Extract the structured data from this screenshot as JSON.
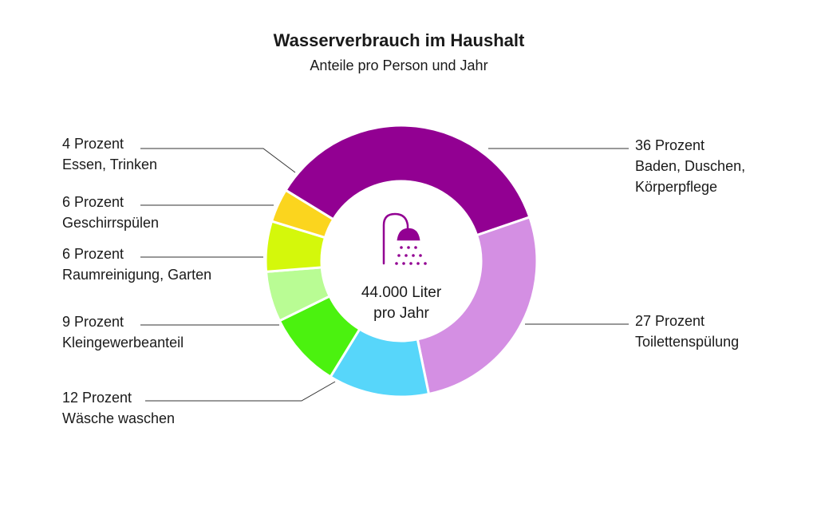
{
  "chart_data": {
    "type": "pie",
    "title": "Wasserverbrauch im Haushalt",
    "subtitle": "Anteile pro Person und Jahr",
    "center_text": [
      "44.000 Liter",
      "pro Jahr"
    ],
    "center_icon": "shower-icon",
    "slices": [
      {
        "value": 36,
        "value_label": "36 Prozent",
        "lines": [
          "Baden, Duschen,",
          "Körperpflege"
        ],
        "color": "#920092"
      },
      {
        "value": 27,
        "value_label": "27 Prozent",
        "lines": [
          "Toilettenspülung"
        ],
        "color": "#d48fe3"
      },
      {
        "value": 12,
        "value_label": "12 Prozent",
        "lines": [
          "Wäsche waschen"
        ],
        "color": "#57d6fa"
      },
      {
        "value": 9,
        "value_label": "9 Prozent",
        "lines": [
          "Kleingewerbeanteil"
        ],
        "color": "#4bf20f"
      },
      {
        "value": 6,
        "value_label": "6 Prozent",
        "lines": [
          "Raumreinigung, Garten"
        ],
        "color": "#b9fc94"
      },
      {
        "value": 6,
        "value_label": "6 Prozent",
        "lines": [
          "Geschirrspülen"
        ],
        "color": "#d4f80b"
      },
      {
        "value": 4,
        "value_label": "4 Prozent",
        "lines": [
          "Essen, Trinken"
        ],
        "color": "#fbd51e"
      }
    ]
  }
}
